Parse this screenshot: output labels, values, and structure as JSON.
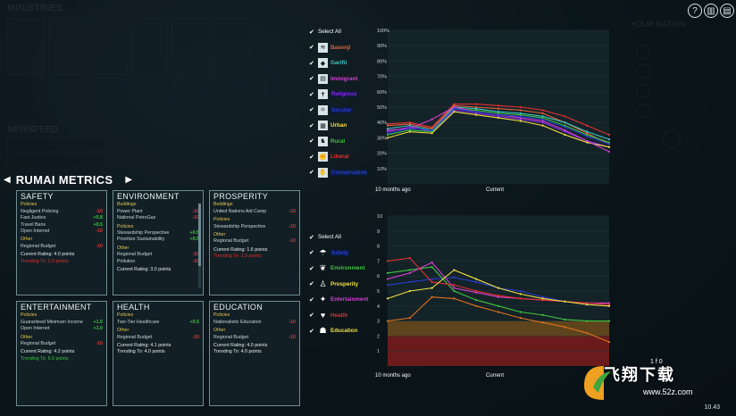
{
  "top_buttons": {
    "help": "?",
    "stats": "▥",
    "menu": "▤"
  },
  "background": {
    "ministries_label": "MINISTRIES",
    "newsfeed_label": "NEWSFEED",
    "your_nation_label": "YOUR NATION"
  },
  "metrics": {
    "title": "RUMAI METRICS",
    "prev_arrow": "◀",
    "next_arrow": "▶",
    "panels": [
      {
        "title": "SAFETY",
        "sections": [
          {
            "heading": "Policies",
            "rows": [
              {
                "label": "Negligent Policing",
                "value": "-10",
                "pos": false
              },
              {
                "label": "Fast Justice",
                "value": "+0.8",
                "pos": true
              },
              {
                "label": "Travel Bans",
                "value": "+0.5",
                "pos": true
              },
              {
                "label": "Open Internet",
                "value": "-10",
                "pos": false
              }
            ]
          },
          {
            "heading": "Other",
            "rows": [
              {
                "label": "Regional Budget",
                "value": "-10",
                "pos": false
              }
            ]
          }
        ],
        "rating": "Current Rating:  4.0 points",
        "trend": "Trending To:  2.0 points",
        "trend_color": "red"
      },
      {
        "title": "ENVIRONMENT",
        "sections": [
          {
            "heading": "Buildings",
            "rows": [
              {
                "label": "Power Plant",
                "value": "-10",
                "pos": false
              },
              {
                "label": "National PetroGaz",
                "value": "-10",
                "pos": false
              }
            ]
          },
          {
            "heading": "Policies",
            "rows": [
              {
                "label": "Stewardship Perspective",
                "value": "+0.5",
                "pos": true
              },
              {
                "label": "Prioritize Sustainability",
                "value": "+0.5",
                "pos": true
              }
            ]
          },
          {
            "heading": "Other",
            "rows": [
              {
                "label": "Regional Budget",
                "value": "-10",
                "pos": false
              },
              {
                "label": "Pollution",
                "value": "-10",
                "pos": false
              }
            ]
          }
        ],
        "rating": "Current Rating:  3.0 points",
        "trend": "",
        "trend_color": "red",
        "scroll": true
      },
      {
        "title": "PROSPERITY",
        "sections": [
          {
            "heading": "Buildings",
            "rows": [
              {
                "label": "United Nations Aid Camp",
                "value": "-10",
                "pos": false
              }
            ]
          },
          {
            "heading": "Policies",
            "rows": [
              {
                "label": "Stewardship Perspective",
                "value": "-10",
                "pos": false
              }
            ]
          },
          {
            "heading": "Other",
            "rows": [
              {
                "label": "Regional Budget",
                "value": "-10",
                "pos": false
              }
            ]
          }
        ],
        "rating": "Current Rating:  1.6 points",
        "trend": "Trending To:  1.0 points",
        "trend_color": "red"
      },
      {
        "title": "ENTERTAINMENT",
        "sections": [
          {
            "heading": "Policies",
            "rows": [
              {
                "label": "Guaranteed Minimum Income",
                "value": "+1.5",
                "pos": true
              },
              {
                "label": "Open Internet",
                "value": "+1.0",
                "pos": true
              }
            ]
          },
          {
            "heading": "Other",
            "rows": [
              {
                "label": "Regional Budget",
                "value": "-10",
                "pos": false
              }
            ]
          }
        ],
        "rating": "Current Rating:  4.2 points",
        "trend": "Trending To:  6.0 points",
        "trend_color": "green"
      },
      {
        "title": "HEALTH",
        "sections": [
          {
            "heading": "Policies",
            "rows": [
              {
                "label": "Two-Tier Healthcare",
                "value": "+0.5",
                "pos": true
              }
            ]
          },
          {
            "heading": "Other",
            "rows": [
              {
                "label": "Regional Budget",
                "value": "-10",
                "pos": false
              }
            ]
          }
        ],
        "rating": "Current Rating:  4.1 points",
        "trend": "Trending To:  4.0 points",
        "trend_color": "white"
      },
      {
        "title": "EDUCATION",
        "sections": [
          {
            "heading": "Policies",
            "rows": [
              {
                "label": "Nationalistic Education",
                "value": "-10",
                "pos": false
              }
            ]
          },
          {
            "heading": "Other",
            "rows": [
              {
                "label": "Regional Budget",
                "value": "-10",
                "pos": false
              }
            ]
          }
        ],
        "rating": "Current Rating:  4.0 points",
        "trend": "Trending To:  4.0 points",
        "trend_color": "white"
      }
    ]
  },
  "group_legend": {
    "select_all": "Select All",
    "items": [
      {
        "label": "Basenji",
        "color": "#e0603a",
        "icon": "≋",
        "icon_name": "waves-icon"
      },
      {
        "label": "Garifii",
        "color": "#3fc4c4",
        "icon": "◆",
        "icon_name": "diamond-icon"
      },
      {
        "label": "Immigrant",
        "color": "#d040d0",
        "icon": "▤",
        "icon_name": "passport-icon"
      },
      {
        "label": "Religious",
        "color": "#8a2be2",
        "icon": "✝",
        "icon_name": "religion-icon"
      },
      {
        "label": "Secular",
        "color": "#2a3cd0",
        "icon": "⚛",
        "icon_name": "atom-icon"
      },
      {
        "label": "Urban",
        "color": "#f0e040",
        "icon": "▦",
        "icon_name": "city-icon"
      },
      {
        "label": "Rural",
        "color": "#3fc43f",
        "icon": "♞",
        "icon_name": "rural-icon"
      },
      {
        "label": "Liberal",
        "color": "#e03030",
        "icon": "✊",
        "icon_name": "fist-icon"
      },
      {
        "label": "Conservative",
        "color": "#2a3cd0",
        "icon": "✋",
        "icon_name": "hand-icon"
      }
    ]
  },
  "metric_legend": {
    "select_all": "Select All",
    "items": [
      {
        "label": "Safety",
        "color": "#2a3cd0",
        "icon": "☂",
        "icon_name": "umbrella-icon"
      },
      {
        "label": "Environment",
        "color": "#3fc43f",
        "icon": "❦",
        "icon_name": "leaf-icon"
      },
      {
        "label": "Prosperity",
        "color": "#f0e040",
        "icon": "♙",
        "icon_name": "prosperity-icon"
      },
      {
        "label": "Entertainment",
        "color": "#d040d0",
        "icon": "✦",
        "icon_name": "entertainment-icon"
      },
      {
        "label": "Health",
        "color": "#e03030",
        "icon": "♥",
        "icon_name": "heart-icon"
      },
      {
        "label": "Education",
        "color": "#f0e040",
        "icon": "☗",
        "icon_name": "graduation-cap-icon"
      }
    ]
  },
  "chart_data": [
    {
      "type": "line",
      "x_labels": [
        "10 months ago",
        "Current"
      ],
      "ylim": [
        0,
        100
      ],
      "yticks": [
        "10%",
        "20%",
        "30%",
        "40%",
        "50%",
        "60%",
        "70%",
        "80%",
        "90%",
        "100%"
      ],
      "x": [
        0,
        1,
        2,
        3,
        4,
        5,
        6,
        7,
        8,
        9,
        10
      ],
      "series": [
        {
          "name": "Liberal",
          "color": "#e03030",
          "values": [
            39,
            40,
            37,
            52,
            52,
            51,
            50,
            48,
            44,
            38,
            32
          ]
        },
        {
          "name": "Basenji",
          "color": "#e0603a",
          "values": [
            38,
            39,
            36,
            51,
            50,
            49,
            48,
            46,
            40,
            33,
            26
          ]
        },
        {
          "name": "Garifii",
          "color": "#3fc4c4",
          "values": [
            36,
            38,
            35,
            50,
            49,
            47,
            46,
            44,
            40,
            34,
            29
          ]
        },
        {
          "name": "Religious",
          "color": "#8a2be2",
          "values": [
            34,
            37,
            34,
            48,
            46,
            44,
            42,
            40,
            34,
            28,
            24
          ]
        },
        {
          "name": "Urban",
          "color": "#f0e040",
          "values": [
            30,
            34,
            33,
            47,
            45,
            43,
            41,
            38,
            32,
            27,
            24
          ]
        },
        {
          "name": "Rural",
          "color": "#3fc43f",
          "values": [
            32,
            35,
            34,
            49,
            48,
            46,
            45,
            43,
            38,
            32,
            27
          ]
        },
        {
          "name": "Immigrant",
          "color": "#d040d0",
          "values": [
            35,
            36,
            42,
            50,
            47,
            45,
            43,
            41,
            35,
            28,
            21
          ]
        },
        {
          "name": "Conservative",
          "color": "#2a3cd0",
          "values": [
            33,
            36,
            35,
            49,
            47,
            45,
            44,
            42,
            37,
            31,
            26
          ]
        }
      ]
    },
    {
      "type": "line",
      "x_labels": [
        "10 months ago",
        "Current"
      ],
      "ylim": [
        0,
        10
      ],
      "yticks": [
        "1",
        "2",
        "3",
        "4",
        "5",
        "6",
        "7",
        "8",
        "9",
        "10"
      ],
      "x": [
        0,
        1,
        2,
        3,
        4,
        5,
        6,
        7,
        8,
        9,
        10
      ],
      "series": [
        {
          "name": "Safety",
          "color": "#2a3cd0",
          "values": [
            5.4,
            5.6,
            5.8,
            5.9,
            5.6,
            5.2,
            5.0,
            4.6,
            4.3,
            4.1,
            4.0
          ]
        },
        {
          "name": "Environment",
          "color": "#3fc43f",
          "values": [
            6.2,
            6.4,
            6.6,
            5.0,
            4.4,
            4.0,
            3.6,
            3.4,
            3.1,
            3.0,
            3.0
          ]
        },
        {
          "name": "Prosperity",
          "color": "#e07020",
          "values": [
            3.0,
            3.2,
            4.6,
            4.5,
            4.0,
            3.6,
            3.2,
            2.9,
            2.6,
            2.2,
            1.6
          ]
        },
        {
          "name": "Entertainment",
          "color": "#d040d0",
          "values": [
            5.8,
            6.2,
            6.9,
            5.2,
            4.9,
            4.6,
            4.5,
            4.4,
            4.3,
            4.2,
            4.2
          ]
        },
        {
          "name": "Health",
          "color": "#e03030",
          "values": [
            7.0,
            7.2,
            5.6,
            5.4,
            5.0,
            4.7,
            4.5,
            4.4,
            4.3,
            4.2,
            4.1
          ]
        },
        {
          "name": "Education",
          "color": "#f0e040",
          "values": [
            4.5,
            5.0,
            5.2,
            6.4,
            5.8,
            5.2,
            4.8,
            4.5,
            4.3,
            4.1,
            4.0
          ]
        }
      ],
      "bands": [
        {
          "from": 0,
          "to": 2,
          "color": "#7a1a1a"
        },
        {
          "from": 2,
          "to": 3,
          "color": "#6a4a1a"
        }
      ]
    }
  ],
  "watermark": {
    "brand": "飞翔下载",
    "url": "www.52z.com",
    "digits": "1 f 0"
  },
  "version": "10.43"
}
